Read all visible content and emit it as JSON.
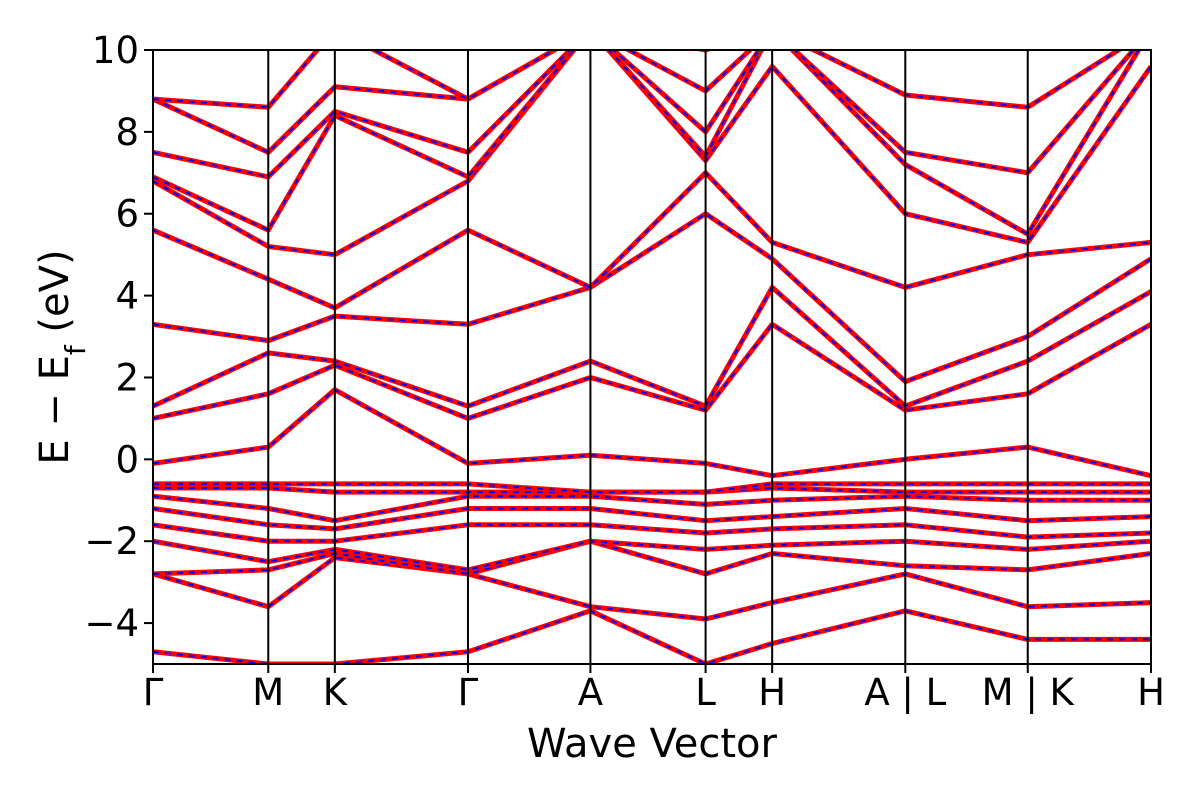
{
  "chart_data": {
    "type": "line",
    "title": "",
    "xlabel": "Wave Vector",
    "ylabel_parts": {
      "prefix": "E − E",
      "subscript": "f",
      "suffix": " (eV)"
    },
    "ylim": [
      -5,
      10
    ],
    "y_ticks": [
      -4,
      -2,
      0,
      2,
      4,
      6,
      8,
      10
    ],
    "y_tick_labels": [
      "−4",
      "−2",
      "0",
      "2",
      "4",
      "6",
      "8",
      "10"
    ],
    "x_domain": [
      0,
      1
    ],
    "high_symmetry_points": [
      {
        "pos": 0.0,
        "label": "Γ"
      },
      {
        "pos": 0.1155,
        "label": "M"
      },
      {
        "pos": 0.1822,
        "label": "K"
      },
      {
        "pos": 0.3156,
        "label": "Γ"
      },
      {
        "pos": 0.4383,
        "label": "A"
      },
      {
        "pos": 0.5537,
        "label": "L"
      },
      {
        "pos": 0.6204,
        "label": "H"
      },
      {
        "pos": 0.7538,
        "label": "A | L"
      },
      {
        "pos": 0.8765,
        "label": "M | K"
      },
      {
        "pos": 1.0,
        "label": "H"
      }
    ],
    "colors": {
      "primary": "#ff0000",
      "secondary": "#0000ff",
      "vline": "#000000"
    },
    "grid": false,
    "legend": "none",
    "series": [
      {
        "style": "solid-red-overlaid-with-blue-dashes",
        "x": [
          0.0,
          0.1155,
          0.1822,
          0.3156,
          0.4383,
          0.5537,
          0.6204,
          0.7538,
          0.8765,
          1.0
        ],
        "values": [
          -4.7,
          -5.0,
          -5.0,
          -4.7,
          -3.7,
          -5.0,
          -4.5,
          -3.7,
          -4.4,
          -4.4
        ]
      },
      {
        "style": "solid-red-overlaid-with-blue-dashes",
        "x": [
          0.0,
          0.1155,
          0.1822,
          0.3156,
          0.4383,
          0.5537,
          0.6204,
          0.7538,
          0.8765,
          1.0
        ],
        "values": [
          -2.8,
          -3.6,
          -2.4,
          -2.8,
          -3.6,
          -3.9,
          -3.5,
          -2.8,
          -3.6,
          -3.5
        ]
      },
      {
        "style": "solid-red-overlaid-with-blue-dashes",
        "x": [
          0.0,
          0.1155,
          0.1822,
          0.3156,
          0.4383,
          0.5537,
          0.6204,
          0.7538,
          0.8765,
          1.0
        ],
        "values": [
          -2.8,
          -2.7,
          -2.3,
          -2.8,
          -2.0,
          -2.8,
          -2.3,
          -2.6,
          -2.7,
          -2.3
        ]
      },
      {
        "style": "solid-red-overlaid-with-blue-dashes",
        "x": [
          0.0,
          0.1155,
          0.1822,
          0.3156,
          0.4383,
          0.5537,
          0.6204,
          0.7538,
          0.8765,
          1.0
        ],
        "values": [
          -2.0,
          -2.5,
          -2.2,
          -2.7,
          -2.0,
          -2.2,
          -2.1,
          -2.0,
          -2.2,
          -2.0
        ]
      },
      {
        "style": "solid-red-overlaid-with-blue-dashes",
        "x": [
          0.0,
          0.1155,
          0.1822,
          0.3156,
          0.4383,
          0.5537,
          0.6204,
          0.7538,
          0.8765,
          1.0
        ],
        "values": [
          -1.6,
          -2.0,
          -2.0,
          -1.6,
          -1.6,
          -1.8,
          -1.7,
          -1.6,
          -1.9,
          -1.8
        ]
      },
      {
        "style": "solid-red-overlaid-with-blue-dashes",
        "x": [
          0.0,
          0.1155,
          0.1822,
          0.3156,
          0.4383,
          0.5537,
          0.6204,
          0.7538,
          0.8765,
          1.0
        ],
        "values": [
          -1.2,
          -1.6,
          -1.7,
          -1.2,
          -1.2,
          -1.5,
          -1.4,
          -1.2,
          -1.5,
          -1.4
        ]
      },
      {
        "style": "solid-red-overlaid-with-blue-dashes",
        "x": [
          0.0,
          0.1155,
          0.1822,
          0.3156,
          0.4383,
          0.5537,
          0.6204,
          0.7538,
          0.8765,
          1.0
        ],
        "values": [
          -0.9,
          -1.2,
          -1.5,
          -0.9,
          -0.9,
          -1.1,
          -1.0,
          -0.9,
          -1.0,
          -1.0
        ]
      },
      {
        "style": "solid-red-overlaid-with-blue-dashes",
        "x": [
          0.0,
          0.1155,
          0.1822,
          0.3156,
          0.4383,
          0.5537,
          0.6204,
          0.7538,
          0.8765,
          1.0
        ],
        "values": [
          -0.7,
          -0.7,
          -0.8,
          -0.8,
          -0.8,
          -0.8,
          -0.7,
          -0.8,
          -0.8,
          -0.8
        ]
      },
      {
        "style": "solid-red-overlaid-with-blue-dashes",
        "x": [
          0.0,
          0.1155,
          0.1822,
          0.3156,
          0.4383,
          0.5537,
          0.6204,
          0.7538,
          0.8765,
          1.0
        ],
        "values": [
          -0.6,
          -0.6,
          -0.6,
          -0.6,
          -0.8,
          -0.8,
          -0.6,
          -0.6,
          -0.6,
          -0.6
        ]
      },
      {
        "style": "solid-red-overlaid-with-blue-dashes",
        "x": [
          0.0,
          0.1155,
          0.1822,
          0.3156,
          0.4383,
          0.5537,
          0.6204,
          0.7538,
          0.8765,
          1.0
        ],
        "values": [
          -0.1,
          0.3,
          1.7,
          -0.1,
          0.1,
          -0.1,
          -0.4,
          0.0,
          0.3,
          -0.4
        ]
      },
      {
        "style": "solid-red-overlaid-with-blue-dashes",
        "x": [
          0.0,
          0.1155,
          0.1822,
          0.3156,
          0.4383,
          0.5537,
          0.6204,
          0.7538,
          0.8765,
          1.0
        ],
        "values": [
          1.0,
          1.6,
          2.3,
          1.0,
          2.0,
          1.2,
          3.3,
          1.2,
          1.6,
          3.3
        ]
      },
      {
        "style": "solid-red-overlaid-with-blue-dashes",
        "x": [
          0.0,
          0.1155,
          0.1822,
          0.3156,
          0.4383,
          0.5537,
          0.6204,
          0.7538,
          0.8765,
          1.0
        ],
        "values": [
          1.3,
          2.6,
          2.4,
          1.3,
          2.4,
          1.3,
          4.2,
          1.3,
          2.4,
          4.1
        ]
      },
      {
        "style": "solid-red-overlaid-with-blue-dashes",
        "x": [
          0.0,
          0.1155,
          0.1822,
          0.3156,
          0.4383,
          0.5537,
          0.6204,
          0.7538,
          0.8765,
          1.0
        ],
        "values": [
          3.3,
          2.9,
          3.5,
          3.3,
          4.2,
          6.0,
          4.9,
          1.9,
          3.0,
          4.9
        ]
      },
      {
        "style": "solid-red-overlaid-with-blue-dashes",
        "x": [
          0.0,
          0.1155,
          0.1822,
          0.3156,
          0.4383,
          0.5537,
          0.6204,
          0.7538,
          0.8765,
          1.0
        ],
        "values": [
          5.6,
          4.4,
          3.7,
          5.6,
          4.2,
          7.0,
          5.3,
          4.2,
          5.0,
          5.3
        ]
      },
      {
        "style": "solid-red-overlaid-with-blue-dashes",
        "x": [
          0.0,
          0.1155,
          0.1822,
          0.3156,
          0.4383,
          0.5537,
          0.6204,
          0.7538,
          0.8765,
          1.0
        ],
        "values": [
          6.8,
          5.2,
          5.0,
          6.8,
          10.5,
          7.3,
          9.6,
          6.0,
          5.3,
          9.6
        ]
      },
      {
        "style": "solid-red-overlaid-with-blue-dashes",
        "x": [
          0.0,
          0.1155,
          0.1822,
          0.3156,
          0.4383,
          0.5537,
          0.6204,
          0.7538,
          0.8765,
          1.0
        ],
        "values": [
          6.9,
          5.6,
          8.4,
          6.9,
          10.5,
          7.4,
          10.5,
          7.2,
          5.5,
          10.5
        ]
      },
      {
        "style": "solid-red-overlaid-with-blue-dashes",
        "x": [
          0.0,
          0.1155,
          0.1822,
          0.3156,
          0.4383,
          0.5537,
          0.6204,
          0.7538,
          0.8765,
          1.0
        ],
        "values": [
          7.5,
          6.9,
          8.5,
          7.5,
          10.5,
          8.0,
          10.5,
          7.5,
          7.0,
          10.5
        ]
      },
      {
        "style": "solid-red-overlaid-with-blue-dashes",
        "x": [
          0.0,
          0.1155,
          0.1822,
          0.3156,
          0.4383,
          0.5537,
          0.6204,
          0.7538,
          0.8765,
          1.0
        ],
        "values": [
          8.8,
          7.5,
          9.1,
          8.8,
          10.5,
          9.0,
          10.5,
          8.9,
          8.6,
          10.5
        ]
      },
      {
        "style": "solid-red-overlaid-with-blue-dashes",
        "x": [
          0.0,
          0.1155,
          0.1822,
          0.3156,
          0.4383,
          0.5537,
          0.6204,
          0.7538,
          0.8765,
          1.0
        ],
        "values": [
          8.8,
          8.6,
          10.5,
          8.8,
          10.5,
          10.0,
          10.5,
          10.5,
          10.5,
          10.5
        ]
      }
    ]
  }
}
